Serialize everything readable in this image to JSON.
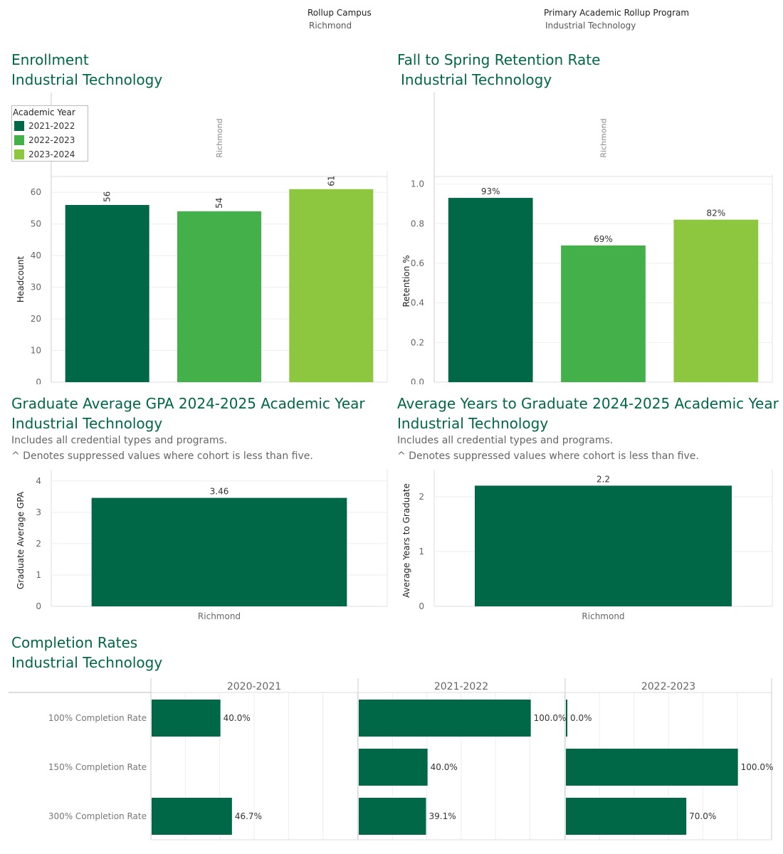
{
  "filters": {
    "campus_label": "Rollup Campus",
    "campus_value": "Richmond",
    "program_label": "Primary Academic Rollup Program",
    "program_value": "Industrial Technology"
  },
  "colors": {
    "dark": "#006747",
    "mid": "#43b049",
    "light": "#8dc63f"
  },
  "enrollment": {
    "title": "Enrollment",
    "subtitle": "Industrial Technology"
  },
  "retention": {
    "title": "Fall to Spring Retention Rate",
    "subtitle": "Industrial Technology"
  },
  "gpa": {
    "title": "Graduate Average GPA 2024-2025 Academic Year",
    "subtitle": "Industrial Technology",
    "note1": "Includes all credential types and programs.",
    "note2": "^ Denotes suppressed values where cohort is less than five."
  },
  "years": {
    "title": "Average Years to Graduate 2024-2025 Academic Year",
    "subtitle": "Industrial Technology",
    "note1": "Includes all credential types and programs.",
    "note2": "^ Denotes suppressed values where cohort is less than five."
  },
  "completion": {
    "title": "Completion Rates",
    "subtitle": "Industrial Technology"
  },
  "legend": {
    "title": "Academic Year",
    "items": [
      "2021-2022",
      "2022-2023",
      "2023-2024"
    ]
  },
  "chart_data": [
    {
      "type": "bar",
      "title": "Enrollment",
      "column_header": "Richmond",
      "categories": [
        "2021-2022",
        "2022-2023",
        "2023-2024"
      ],
      "values": [
        56,
        54,
        61
      ],
      "labels": [
        "56",
        "54",
        "61"
      ],
      "ylabel": "Headcount",
      "ylim": [
        0,
        65
      ],
      "yticks": [
        0,
        10,
        20,
        30,
        40,
        50,
        60
      ],
      "grid": true
    },
    {
      "type": "bar",
      "title": "Fall to Spring Retention Rate",
      "column_header": "Richmond",
      "categories": [
        "2021-2022",
        "2022-2023",
        "2023-2024"
      ],
      "values": [
        0.93,
        0.69,
        0.82
      ],
      "labels": [
        "93%",
        "69%",
        "82%"
      ],
      "ylabel": "Retention %",
      "ylim": [
        0,
        1.02
      ],
      "yticks": [
        "0.0",
        "0.2",
        "0.4",
        "0.6",
        "0.8",
        "1.0"
      ],
      "grid": true
    },
    {
      "type": "bar",
      "title": "Graduate Average GPA 2024-2025 Academic Year",
      "categories": [
        "Richmond"
      ],
      "values": [
        3.46
      ],
      "labels": [
        "3.46"
      ],
      "ylabel": "Graduate Average GPA",
      "ylim": [
        0,
        4.2
      ],
      "yticks": [
        0,
        1,
        2,
        3,
        4
      ],
      "grid": true
    },
    {
      "type": "bar",
      "title": "Average Years to Graduate 2024-2025 Academic Year",
      "categories": [
        "Richmond"
      ],
      "values": [
        2.2
      ],
      "labels": [
        "2.2"
      ],
      "ylabel": "Average Years to Graduate",
      "ylim": [
        0,
        2.4
      ],
      "yticks": [
        0,
        1,
        2
      ],
      "grid": true
    },
    {
      "type": "bar",
      "orientation": "horizontal",
      "title": "Completion Rates",
      "columns": [
        "2020-2021",
        "2021-2022",
        "2022-2023"
      ],
      "rows": [
        "100% Completion Rate",
        "150% Completion Rate",
        "300% Completion Rate"
      ],
      "xlim": [
        0,
        1.2
      ],
      "values": [
        [
          0.4,
          1.0,
          0.0
        ],
        [
          null,
          0.4,
          1.0
        ],
        [
          0.467,
          0.391,
          0.7
        ]
      ],
      "labels": [
        [
          "40.0%",
          "100.0%",
          "0.0%"
        ],
        [
          "",
          "40.0%",
          "100.0%"
        ],
        [
          "46.7%",
          "39.1%",
          "70.0%"
        ]
      ]
    }
  ]
}
